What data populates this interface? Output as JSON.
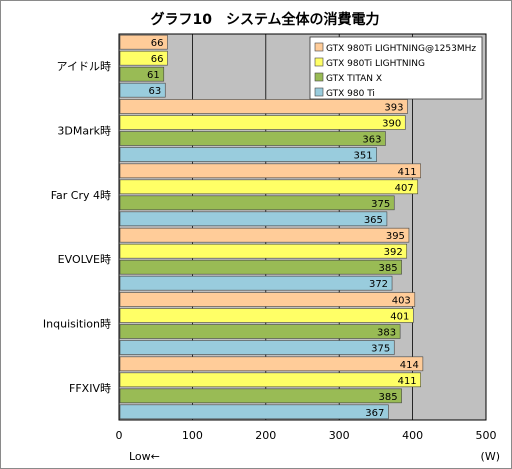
{
  "chart_data": {
    "type": "bar",
    "orientation": "horizontal",
    "title": "グラフ10　システム全体の消費電力",
    "xlabel_left": "Low←",
    "xlabel_right": "(W)",
    "xlim": [
      0,
      500
    ],
    "xticks": [
      0,
      100,
      200,
      300,
      400,
      500
    ],
    "grid": true,
    "legend_position": "top-right",
    "categories": [
      "アイドル時",
      "3DMark時",
      "Far Cry 4時",
      "EVOLVE時",
      "Inquisition時",
      "FFXIV時"
    ],
    "series": [
      {
        "name": "GTX 980Ti LIGHTNING@1253MHz",
        "color": "#ffcc99",
        "values": [
          66,
          393,
          411,
          395,
          403,
          414
        ]
      },
      {
        "name": "GTX 980Ti LIGHTNING",
        "color": "#ffff66",
        "values": [
          66,
          390,
          407,
          392,
          401,
          411
        ]
      },
      {
        "name": "GTX TITAN X",
        "color": "#99bb55",
        "values": [
          61,
          363,
          375,
          385,
          383,
          385
        ]
      },
      {
        "name": "GTX 980 Ti",
        "color": "#99ccdd",
        "values": [
          63,
          351,
          365,
          372,
          375,
          367
        ]
      }
    ]
  },
  "colors": {
    "plot_background": "#c0c0c0",
    "gridline": "#000000"
  }
}
